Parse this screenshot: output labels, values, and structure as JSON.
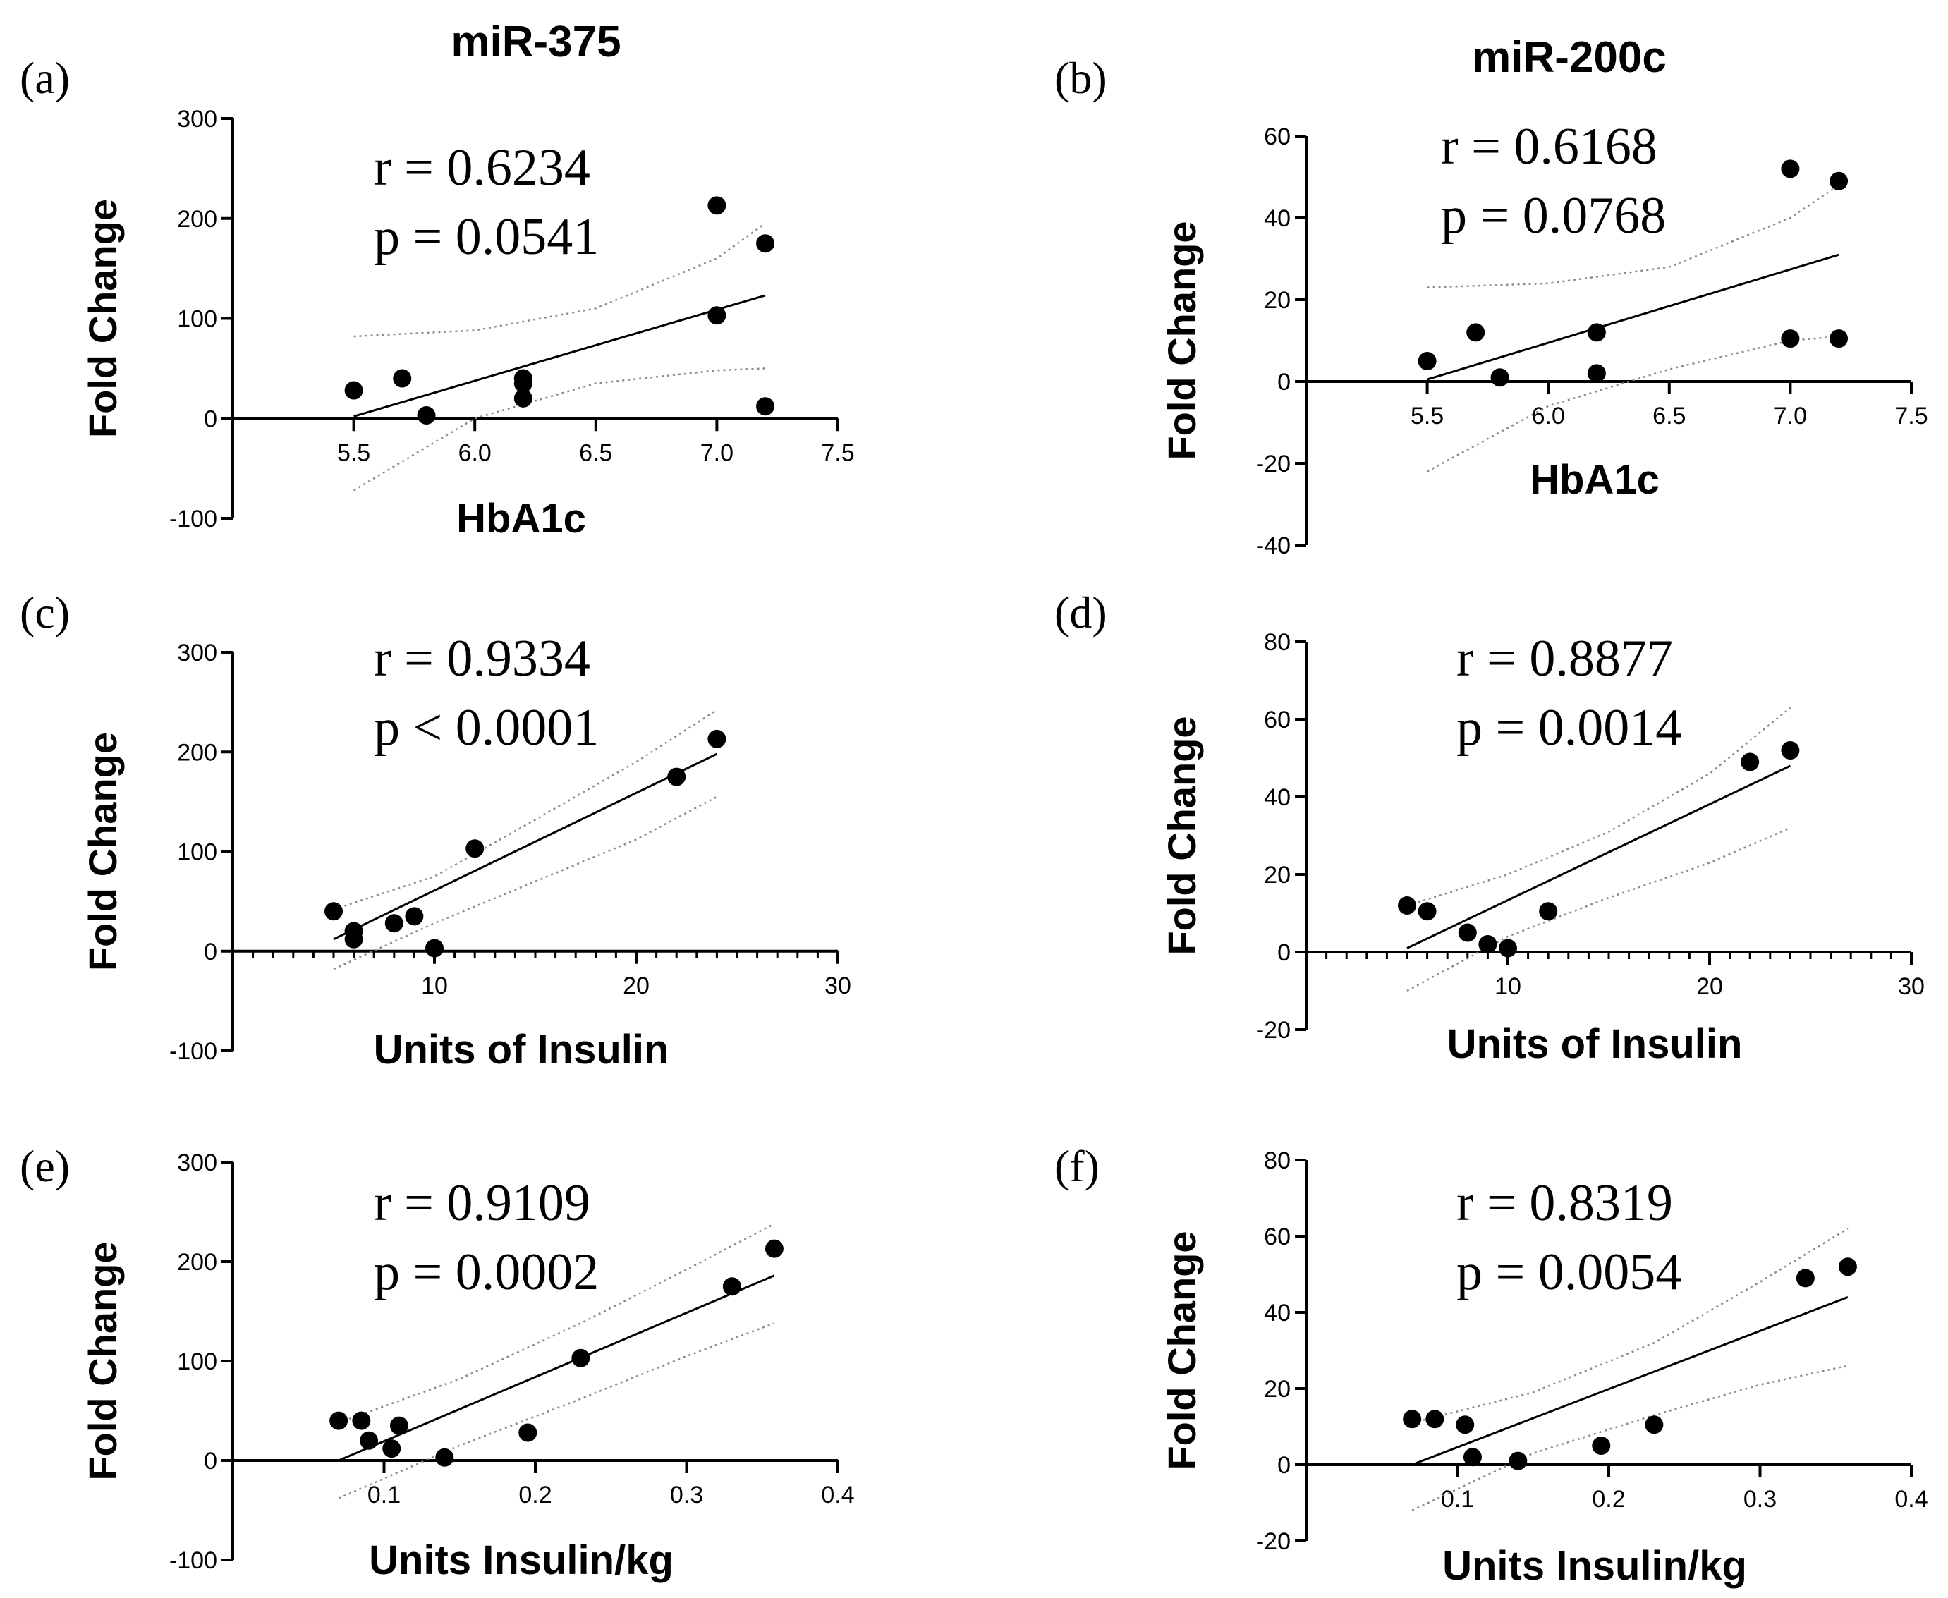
{
  "column_titles": [
    "miR-375",
    "miR-200c"
  ],
  "chart_data": [
    {
      "panel": "(a)",
      "type": "scatter",
      "title": "miR-375",
      "xlabel": "HbA1c",
      "ylabel": "Fold Change",
      "xlim": [
        5.0,
        7.5
      ],
      "ylim": [
        -100,
        300
      ],
      "xticks": [
        5.5,
        6.0,
        6.5,
        7.0,
        7.5
      ],
      "xtick_labels": [
        "5.5",
        "6.0",
        "6.5",
        "7.0",
        "7.5"
      ],
      "yticks": [
        -100,
        0,
        100,
        200,
        300
      ],
      "ytick_labels": [
        "-100",
        "0",
        "100",
        "200",
        "300"
      ],
      "x": [
        5.5,
        5.7,
        5.8,
        6.2,
        6.2,
        6.2,
        7.0,
        7.0,
        7.2,
        7.2
      ],
      "y": [
        28,
        40,
        3,
        40,
        35,
        20,
        213,
        103,
        175,
        12
      ],
      "fit": {
        "x": [
          5.5,
          7.2
        ],
        "y": [
          2,
          123
        ]
      },
      "ci_upper": {
        "x": [
          5.5,
          6.0,
          6.5,
          7.0,
          7.2
        ],
        "y": [
          82,
          88,
          110,
          160,
          195
        ]
      },
      "ci_lower": {
        "x": [
          5.5,
          6.0,
          6.5,
          7.0,
          7.2
        ],
        "y": [
          -72,
          0,
          35,
          48,
          50
        ]
      },
      "r_text": "r = 0.6234",
      "p_text": "p = 0.0541"
    },
    {
      "panel": "(b)",
      "type": "scatter",
      "title": "miR-200c",
      "xlabel": "HbA1c",
      "ylabel": "Fold Change",
      "xlim": [
        5.0,
        7.5
      ],
      "ylim": [
        -40,
        60
      ],
      "xticks": [
        5.5,
        6.0,
        6.5,
        7.0,
        7.5
      ],
      "xtick_labels": [
        "5.5",
        "6.0",
        "6.5",
        "7.0",
        "7.5"
      ],
      "yticks": [
        -40,
        -20,
        0,
        20,
        40,
        60
      ],
      "ytick_labels": [
        "-40",
        "-20",
        "0",
        "20",
        "40",
        "60"
      ],
      "x": [
        5.5,
        5.7,
        5.8,
        6.2,
        6.2,
        7.0,
        7.0,
        7.2,
        7.2
      ],
      "y": [
        5,
        12,
        1,
        12,
        2,
        52,
        10.5,
        49,
        10.5
      ],
      "fit": {
        "x": [
          5.5,
          7.2
        ],
        "y": [
          0.5,
          31
        ]
      },
      "ci_upper": {
        "x": [
          5.5,
          6.0,
          6.5,
          7.0,
          7.2
        ],
        "y": [
          23,
          24,
          28,
          40,
          48
        ]
      },
      "ci_lower": {
        "x": [
          5.5,
          6.0,
          6.5,
          7.0,
          7.2
        ],
        "y": [
          -22,
          -6,
          3,
          10,
          11
        ]
      },
      "r_text": "r = 0.6168",
      "p_text": "p = 0.0768"
    },
    {
      "panel": "(c)",
      "type": "scatter",
      "title": "",
      "xlabel": "Units of Insulin",
      "ylabel": "Fold Change",
      "xlim": [
        0,
        30
      ],
      "ylim": [
        -100,
        300
      ],
      "xticks": [
        10,
        20,
        30
      ],
      "xtick_labels": [
        "10",
        "20",
        "30"
      ],
      "yticks": [
        -100,
        0,
        100,
        200,
        300
      ],
      "ytick_labels": [
        "-100",
        "0",
        "100",
        "200",
        "300"
      ],
      "x": [
        5,
        6,
        6,
        8,
        9,
        10,
        12,
        22,
        24
      ],
      "y": [
        40,
        20,
        12,
        28,
        35,
        3,
        103,
        175,
        213
      ],
      "fit": {
        "x": [
          5,
          24
        ],
        "y": [
          12,
          198
        ]
      },
      "ci_upper": {
        "x": [
          5,
          10,
          15,
          20,
          24
        ],
        "y": [
          42,
          75,
          132,
          190,
          242
        ]
      },
      "ci_lower": {
        "x": [
          5,
          10,
          15,
          20,
          24
        ],
        "y": [
          -18,
          28,
          70,
          112,
          155
        ]
      },
      "r_text": "r = 0.9334",
      "p_text": "p < 0.0001"
    },
    {
      "panel": "(d)",
      "type": "scatter",
      "title": "",
      "xlabel": "Units of Insulin",
      "ylabel": "Fold Change",
      "xlim": [
        0,
        30
      ],
      "ylim": [
        -20,
        80
      ],
      "xticks": [
        10,
        20,
        30
      ],
      "xtick_labels": [
        "10",
        "20",
        "30"
      ],
      "yticks": [
        -20,
        0,
        20,
        40,
        60,
        80
      ],
      "ytick_labels": [
        "-20",
        "0",
        "20",
        "40",
        "60",
        "80"
      ],
      "x": [
        5,
        6,
        8,
        9,
        10,
        12,
        22,
        24
      ],
      "y": [
        12,
        10.5,
        5,
        2,
        1,
        10.5,
        49,
        52
      ],
      "fit": {
        "x": [
          5,
          24
        ],
        "y": [
          1,
          48
        ]
      },
      "ci_upper": {
        "x": [
          5,
          10,
          15,
          20,
          24
        ],
        "y": [
          12,
          20,
          31,
          46,
          63
        ]
      },
      "ci_lower": {
        "x": [
          5,
          10,
          15,
          20,
          24
        ],
        "y": [
          -10,
          4,
          14,
          23,
          32
        ]
      },
      "r_text": "r = 0.8877",
      "p_text": "p = 0.0014"
    },
    {
      "panel": "(e)",
      "type": "scatter",
      "title": "",
      "xlabel": "Units Insulin/kg",
      "ylabel": "Fold Change",
      "xlim": [
        0,
        0.4
      ],
      "ylim": [
        -100,
        300
      ],
      "xticks": [
        0.1,
        0.2,
        0.3,
        0.4
      ],
      "xtick_labels": [
        "0.1",
        "0.2",
        "0.3",
        "0.4"
      ],
      "yticks": [
        -100,
        0,
        100,
        200,
        300
      ],
      "ytick_labels": [
        "-100",
        "0",
        "100",
        "200",
        "300"
      ],
      "x": [
        0.07,
        0.085,
        0.09,
        0.105,
        0.11,
        0.14,
        0.195,
        0.23,
        0.33,
        0.358
      ],
      "y": [
        40,
        40,
        20,
        12,
        35,
        3,
        28,
        103,
        175,
        213
      ],
      "fit": {
        "x": [
          0.07,
          0.358
        ],
        "y": [
          0,
          186
        ]
      },
      "ci_upper": {
        "x": [
          0.07,
          0.15,
          0.23,
          0.3,
          0.358
        ],
        "y": [
          38,
          82,
          138,
          192,
          238
        ]
      },
      "ci_lower": {
        "x": [
          0.07,
          0.15,
          0.23,
          0.3,
          0.358
        ],
        "y": [
          -38,
          15,
          62,
          105,
          138
        ]
      },
      "r_text": "r = 0.9109",
      "p_text": "p = 0.0002"
    },
    {
      "panel": "(f)",
      "type": "scatter",
      "title": "",
      "xlabel": "Units Insulin/kg",
      "ylabel": "Fold Change",
      "xlim": [
        0,
        0.4
      ],
      "ylim": [
        -20,
        80
      ],
      "xticks": [
        0.1,
        0.2,
        0.3,
        0.4
      ],
      "xtick_labels": [
        "0.1",
        "0.2",
        "0.3",
        "0.4"
      ],
      "yticks": [
        -20,
        0,
        20,
        40,
        60,
        80
      ],
      "ytick_labels": [
        "-20",
        "0",
        "20",
        "40",
        "60",
        "80"
      ],
      "x": [
        0.07,
        0.085,
        0.105,
        0.11,
        0.14,
        0.195,
        0.23,
        0.33,
        0.358
      ],
      "y": [
        12,
        12,
        10.5,
        2,
        1,
        5,
        10.5,
        49,
        52
      ],
      "fit": {
        "x": [
          0.07,
          0.358
        ],
        "y": [
          0,
          44
        ]
      },
      "ci_upper": {
        "x": [
          0.07,
          0.15,
          0.23,
          0.3,
          0.358
        ],
        "y": [
          11,
          19,
          32,
          48,
          62
        ]
      },
      "ci_lower": {
        "x": [
          0.07,
          0.15,
          0.23,
          0.3,
          0.358
        ],
        "y": [
          -12,
          3,
          13,
          21,
          26
        ]
      },
      "r_text": "r = 0.8319",
      "p_text": "p = 0.0054"
    }
  ]
}
